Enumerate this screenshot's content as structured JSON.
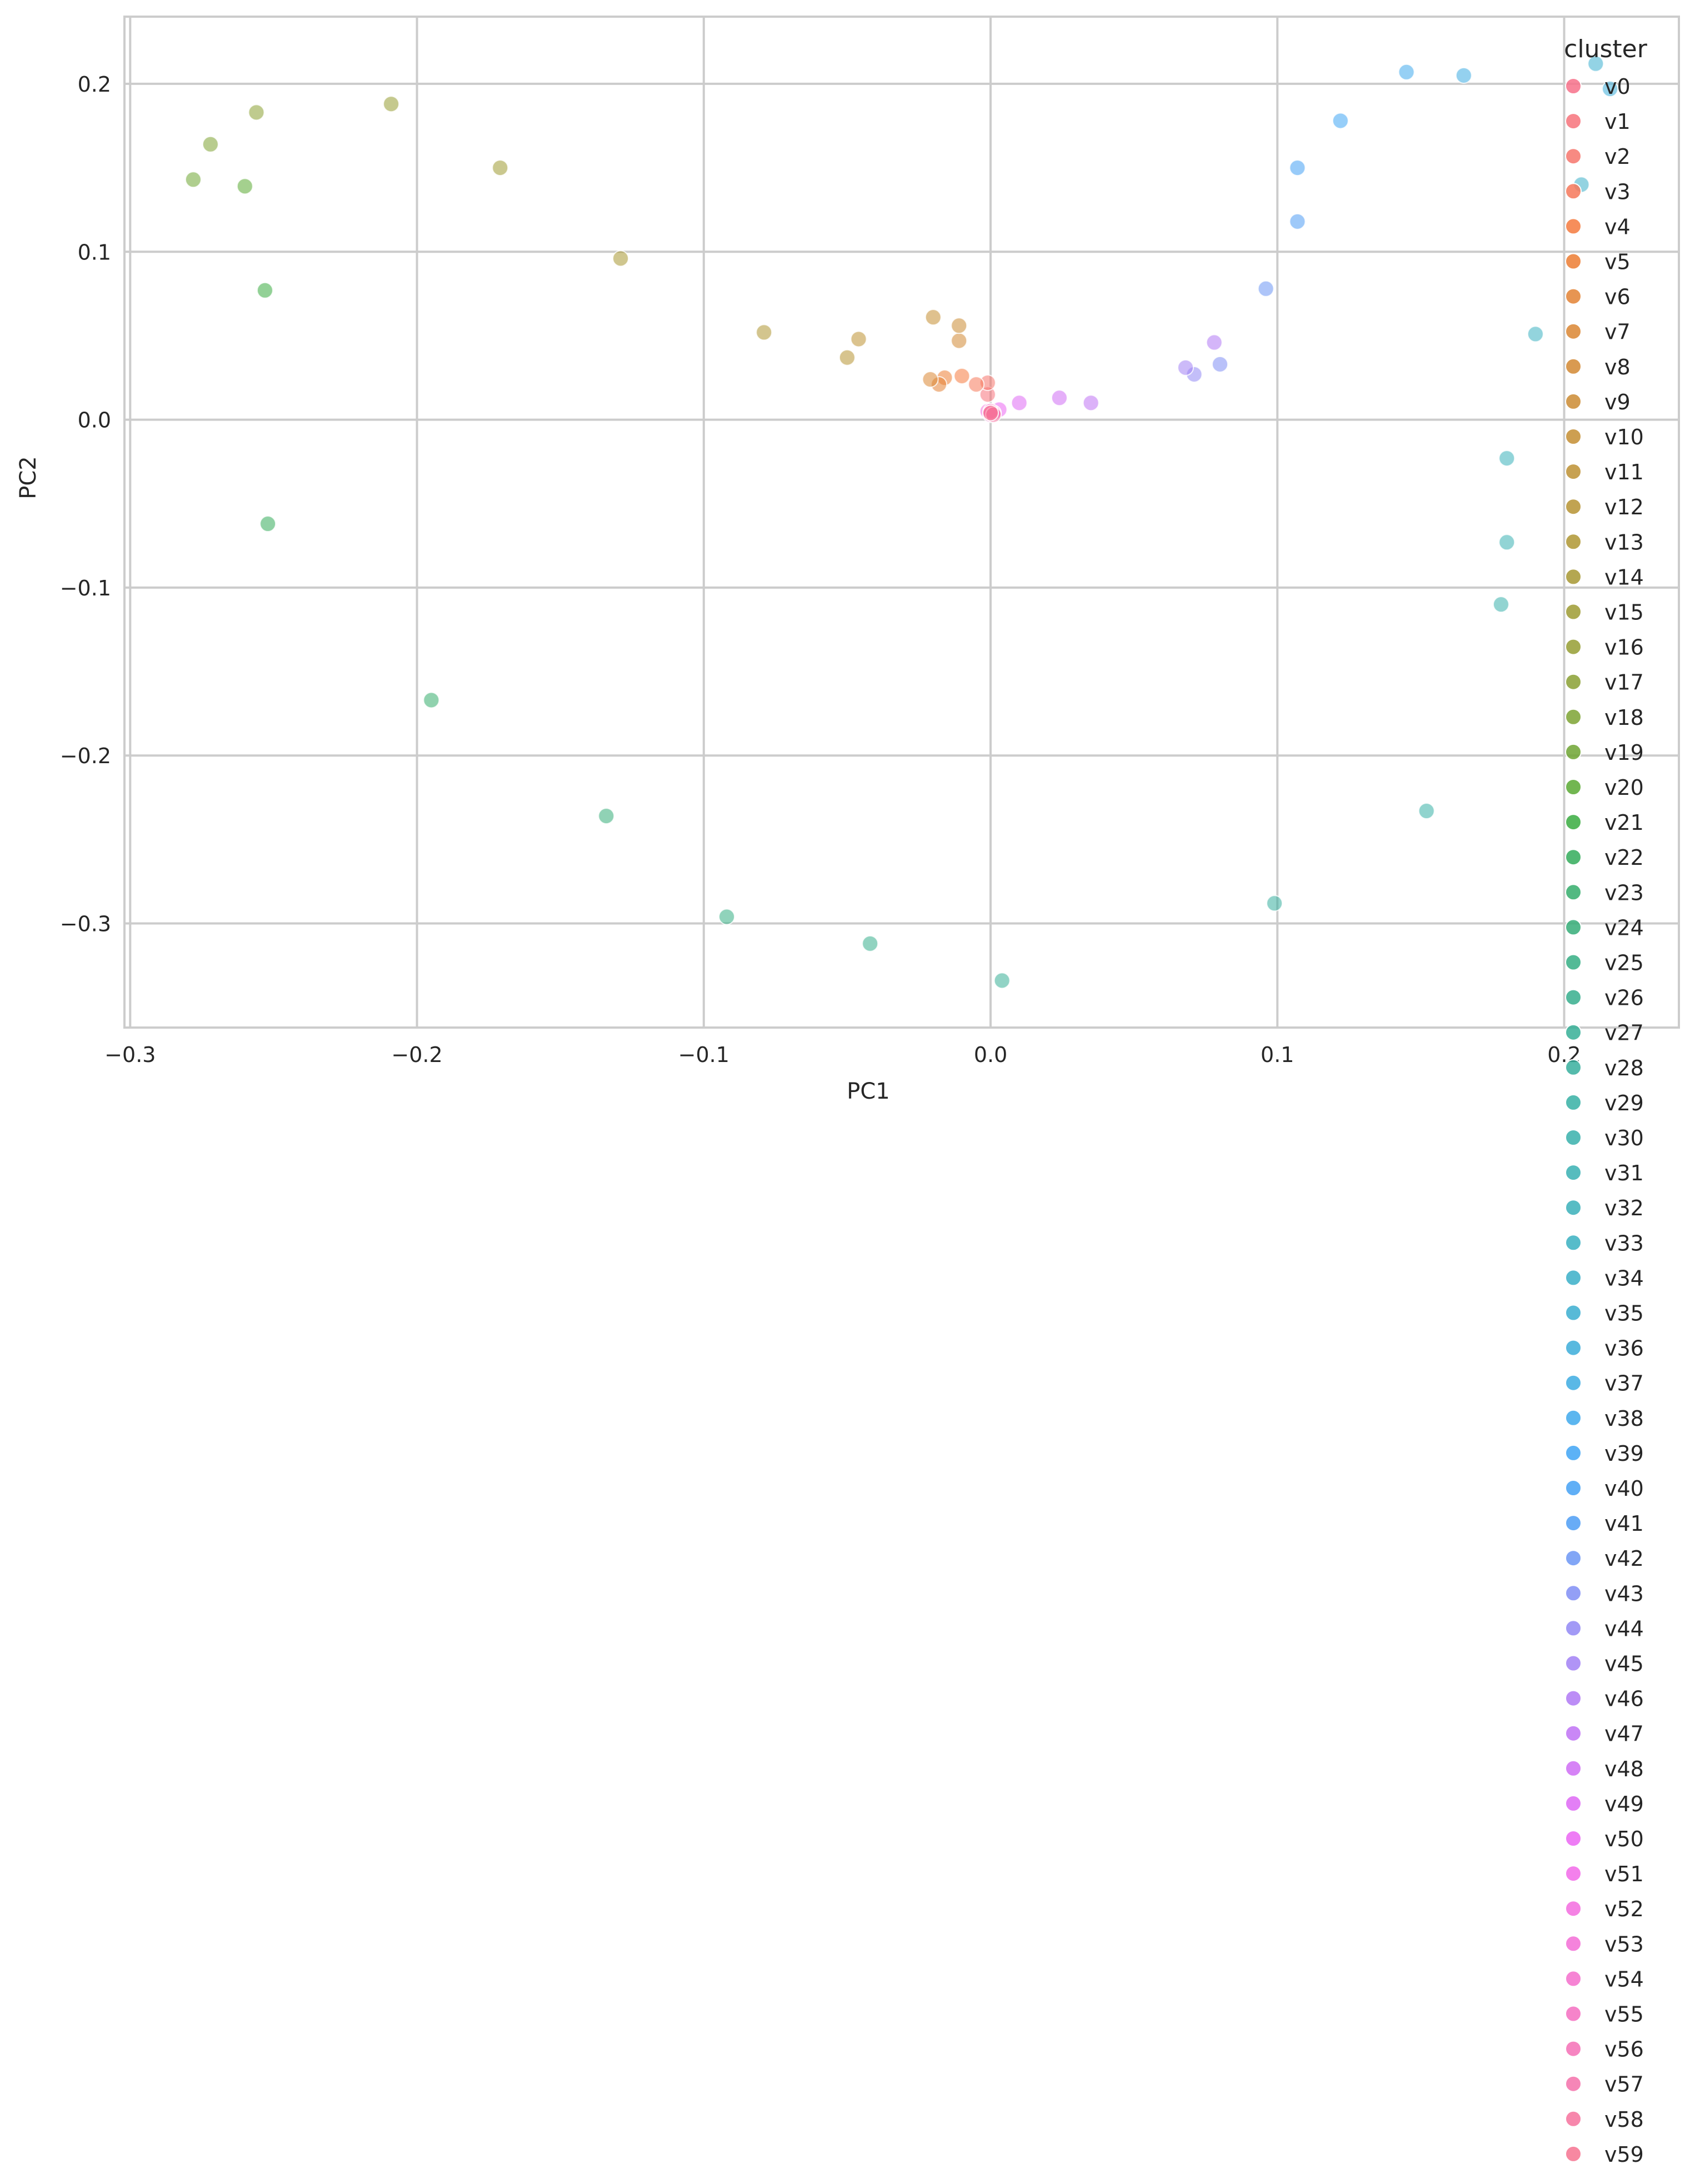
{
  "chart_data": {
    "type": "scatter",
    "title": "",
    "xlabel": "PC1",
    "ylabel": "PC2",
    "xlim": [
      -0.302,
      0.24
    ],
    "ylim": [
      -0.362,
      0.24
    ],
    "xticks": [
      -0.3,
      -0.2,
      -0.1,
      0.0,
      0.1,
      0.2
    ],
    "xtick_labels": [
      "−0.3",
      "−0.2",
      "−0.1",
      "0.0",
      "0.1",
      "0.2"
    ],
    "yticks": [
      0.2,
      0.1,
      0.0,
      -0.1,
      -0.2,
      -0.3
    ],
    "ytick_labels": [
      "0.2",
      "0.1",
      "0.0",
      "−0.1",
      "−0.2",
      "−0.3"
    ],
    "grid": true,
    "legend": {
      "title": "cluster",
      "placement": "right, extending below plot"
    },
    "series": [
      {
        "name": "v0",
        "color": "#f77189",
        "points": [
          [
            0.0,
            0.004
          ]
        ]
      },
      {
        "name": "v1",
        "color": "#f7737b",
        "points": [
          [
            -0.001,
            0.015
          ]
        ]
      },
      {
        "name": "v2",
        "color": "#f6756c",
        "points": [
          [
            -0.001,
            0.022
          ]
        ]
      },
      {
        "name": "v3",
        "color": "#f6785a",
        "points": [
          [
            -0.005,
            0.021
          ]
        ]
      },
      {
        "name": "v4",
        "color": "#f57a3e",
        "points": [
          [
            -0.01,
            0.026
          ]
        ]
      },
      {
        "name": "v5",
        "color": "#ec7d33",
        "points": [
          [
            -0.016,
            0.025
          ]
        ]
      },
      {
        "name": "v6",
        "color": "#e38234",
        "points": [
          [
            -0.018,
            0.021
          ]
        ]
      },
      {
        "name": "v7",
        "color": "#da8633",
        "points": [
          [
            -0.021,
            0.024
          ]
        ]
      },
      {
        "name": "v8",
        "color": "#d28833",
        "points": [
          [
            -0.011,
            0.047
          ]
        ]
      },
      {
        "name": "v9",
        "color": "#cb8b32",
        "points": [
          [
            -0.011,
            0.056
          ]
        ]
      },
      {
        "name": "v10",
        "color": "#c48e32",
        "points": [
          [
            -0.02,
            0.061
          ]
        ]
      },
      {
        "name": "v11",
        "color": "#bd9132",
        "points": [
          [
            -0.046,
            0.048
          ]
        ]
      },
      {
        "name": "v12",
        "color": "#b69332",
        "points": [
          [
            -0.05,
            0.037
          ]
        ]
      },
      {
        "name": "v13",
        "color": "#af9632",
        "points": [
          [
            -0.079,
            0.052
          ]
        ]
      },
      {
        "name": "v14",
        "color": "#a79832",
        "points": [
          [
            -0.129,
            0.096
          ]
        ]
      },
      {
        "name": "v15",
        "color": "#9e9b32",
        "points": [
          [
            -0.171,
            0.15
          ]
        ]
      },
      {
        "name": "v16",
        "color": "#959d32",
        "points": [
          [
            -0.209,
            0.188
          ]
        ]
      },
      {
        "name": "v17",
        "color": "#8aa032",
        "points": [
          [
            -0.256,
            0.183
          ]
        ]
      },
      {
        "name": "v18",
        "color": "#7da332",
        "points": [
          [
            -0.272,
            0.164
          ]
        ]
      },
      {
        "name": "v19",
        "color": "#6ea532",
        "points": [
          [
            -0.278,
            0.143
          ]
        ]
      },
      {
        "name": "v20",
        "color": "#59a932",
        "points": [
          [
            -0.26,
            0.139
          ]
        ]
      },
      {
        "name": "v21",
        "color": "#38ac40",
        "points": [
          [
            -0.253,
            0.077
          ]
        ]
      },
      {
        "name": "v22",
        "color": "#33ac5a",
        "points": [
          [
            -0.252,
            -0.062
          ]
        ]
      },
      {
        "name": "v23",
        "color": "#34ad6b",
        "points": [
          [
            -0.195,
            -0.167
          ]
        ]
      },
      {
        "name": "v24",
        "color": "#35ad78",
        "points": [
          [
            -0.134,
            -0.236
          ]
        ]
      },
      {
        "name": "v25",
        "color": "#35ae84",
        "points": [
          [
            -0.092,
            -0.296
          ]
        ]
      },
      {
        "name": "v26",
        "color": "#36ae8d",
        "points": [
          [
            -0.042,
            -0.312
          ]
        ]
      },
      {
        "name": "v27",
        "color": "#36af96",
        "points": [
          [
            0.004,
            -0.334
          ]
        ]
      },
      {
        "name": "v28",
        "color": "#37af9e",
        "points": [
          [
            0.099,
            -0.288
          ]
        ]
      },
      {
        "name": "v29",
        "color": "#37b0a5",
        "points": [
          [
            0.152,
            -0.233
          ]
        ]
      },
      {
        "name": "v30",
        "color": "#38b0ac",
        "points": [
          [
            0.178,
            -0.11
          ]
        ]
      },
      {
        "name": "v31",
        "color": "#38b0b3",
        "points": [
          [
            0.18,
            -0.073
          ]
        ]
      },
      {
        "name": "v32",
        "color": "#39b0ba",
        "points": [
          [
            0.18,
            -0.023
          ]
        ]
      },
      {
        "name": "v33",
        "color": "#3ab0c1",
        "points": [
          [
            0.19,
            0.051
          ]
        ]
      },
      {
        "name": "v34",
        "color": "#3aafc8",
        "points": [
          [
            0.206,
            0.14
          ]
        ]
      },
      {
        "name": "v35",
        "color": "#3baed0",
        "points": [
          [
            0.211,
            0.212
          ]
        ]
      },
      {
        "name": "v36",
        "color": "#3cadd9",
        "points": [
          [
            0.216,
            0.197
          ]
        ]
      },
      {
        "name": "v37",
        "color": "#3dabe2",
        "points": [
          [
            0.165,
            0.205
          ]
        ]
      },
      {
        "name": "v38",
        "color": "#3fa9ec",
        "points": [
          [
            0.145,
            0.207
          ]
        ]
      },
      {
        "name": "v39",
        "color": "#40a5f4",
        "points": [
          [
            0.122,
            0.178
          ]
        ]
      },
      {
        "name": "v40",
        "color": "#44a1f4",
        "points": [
          [
            0.107,
            0.15
          ]
        ]
      },
      {
        "name": "v41",
        "color": "#4e9df4",
        "points": [
          [
            0.107,
            0.118
          ]
        ]
      },
      {
        "name": "v42",
        "color": "#6c96f4",
        "points": [
          [
            0.096,
            0.078
          ]
        ]
      },
      {
        "name": "v43",
        "color": "#808ef4",
        "points": [
          [
            0.08,
            0.033
          ]
        ]
      },
      {
        "name": "v44",
        "color": "#9288f4",
        "points": [
          [
            0.071,
            0.027
          ]
        ]
      },
      {
        "name": "v45",
        "color": "#a281f4",
        "points": [
          [
            0.068,
            0.031
          ]
        ]
      },
      {
        "name": "v46",
        "color": "#b079f4",
        "points": [
          [
            0.078,
            0.046
          ]
        ]
      },
      {
        "name": "v47",
        "color": "#c072f4",
        "points": [
          [
            0.035,
            0.01
          ]
        ]
      },
      {
        "name": "v48",
        "color": "#cf6df4",
        "points": [
          [
            0.024,
            0.013
          ]
        ]
      },
      {
        "name": "v49",
        "color": "#de69f4",
        "points": [
          [
            0.01,
            0.01
          ]
        ]
      },
      {
        "name": "v50",
        "color": "#eb66f3",
        "points": [
          [
            0.003,
            0.006
          ]
        ]
      },
      {
        "name": "v51",
        "color": "#f26ae9",
        "points": [
          [
            0.0,
            0.005
          ]
        ]
      },
      {
        "name": "v52",
        "color": "#f36cdf",
        "points": [
          [
            -0.001,
            0.005
          ]
        ]
      },
      {
        "name": "v53",
        "color": "#f36dd6",
        "points": [
          [
            0.001,
            0.004
          ]
        ]
      },
      {
        "name": "v54",
        "color": "#f46ecc",
        "points": [
          [
            0.0,
            0.003
          ]
        ]
      },
      {
        "name": "v55",
        "color": "#f46fc1",
        "points": [
          [
            0.001,
            0.004
          ]
        ]
      },
      {
        "name": "v56",
        "color": "#f570b6",
        "points": [
          [
            0.0,
            0.005
          ]
        ]
      },
      {
        "name": "v57",
        "color": "#f571aa",
        "points": [
          [
            0.0,
            0.004
          ]
        ]
      },
      {
        "name": "v58",
        "color": "#f6729d",
        "points": [
          [
            0.001,
            0.003
          ]
        ]
      },
      {
        "name": "v59",
        "color": "#f67390",
        "points": [
          [
            0.0,
            0.004
          ]
        ]
      }
    ]
  }
}
